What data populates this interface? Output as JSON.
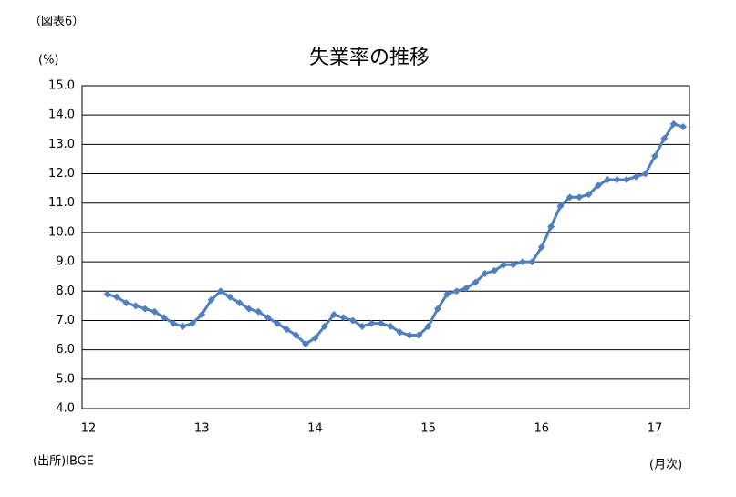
{
  "chart_data": {
    "type": "line",
    "figure_label": "（図表6）",
    "title": "失業率の推移",
    "y_unit": "(%)",
    "source": "(出所)IBGE",
    "x_unit": "(月次)",
    "categories": [
      "12",
      null,
      null,
      null,
      null,
      null,
      null,
      null,
      null,
      null,
      null,
      null,
      "13",
      null,
      null,
      null,
      null,
      null,
      null,
      null,
      null,
      null,
      null,
      null,
      "14",
      null,
      null,
      null,
      null,
      null,
      null,
      null,
      null,
      null,
      null,
      null,
      "15",
      null,
      null,
      null,
      null,
      null,
      null,
      null,
      null,
      null,
      null,
      null,
      "16",
      null,
      null,
      null,
      null,
      null,
      null,
      null,
      null,
      null,
      null,
      null,
      "17",
      null,
      null,
      null
    ],
    "series": [
      {
        "name": "失業率",
        "color": "#4f7fbf",
        "values": [
          null,
          null,
          7.9,
          7.8,
          7.6,
          7.5,
          7.4,
          7.3,
          7.1,
          6.9,
          6.8,
          6.9,
          7.2,
          7.7,
          8.0,
          7.8,
          7.6,
          7.4,
          7.3,
          7.1,
          6.9,
          6.7,
          6.5,
          6.2,
          6.4,
          6.8,
          7.2,
          7.1,
          7.0,
          6.8,
          6.9,
          6.9,
          6.8,
          6.6,
          6.5,
          6.5,
          6.8,
          7.4,
          7.9,
          8.0,
          8.1,
          8.3,
          8.6,
          8.7,
          8.9,
          8.9,
          9.0,
          9.0,
          9.5,
          10.2,
          10.9,
          11.2,
          11.2,
          11.3,
          11.6,
          11.8,
          11.8,
          11.8,
          11.9,
          12.0,
          12.6,
          13.2,
          13.7,
          13.6
        ]
      }
    ],
    "ylim": [
      4,
      15
    ],
    "yticks": [
      {
        "value": 4,
        "label": "4.0"
      },
      {
        "value": 5,
        "label": "5.0"
      },
      {
        "value": 6,
        "label": "6.0"
      },
      {
        "value": 7,
        "label": "7.0"
      },
      {
        "value": 8,
        "label": "8.0"
      },
      {
        "value": 9,
        "label": "9.0"
      },
      {
        "value": 10,
        "label": "10.0"
      },
      {
        "value": 11,
        "label": "11.0"
      },
      {
        "value": 12,
        "label": "12.0"
      },
      {
        "value": 13,
        "label": "13.0"
      },
      {
        "value": 14,
        "label": "14.0"
      },
      {
        "value": 15,
        "label": "15.0"
      }
    ],
    "grid": true
  }
}
